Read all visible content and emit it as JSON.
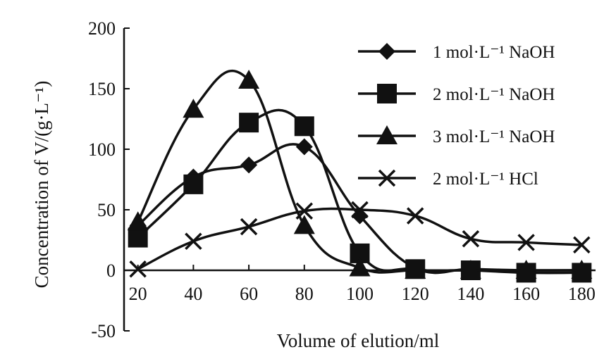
{
  "chart_data": {
    "type": "line",
    "title": "",
    "xlabel": "Volume of elution/ml",
    "ylabel": "Concentration of V/(g·L⁻¹)",
    "x": [
      20,
      40,
      60,
      80,
      100,
      120,
      140,
      160,
      180
    ],
    "xlim": [
      15,
      185
    ],
    "ylim": [
      -50,
      200
    ],
    "x_ticks": [
      "20",
      "40",
      "60",
      "80",
      "100",
      "120",
      "140",
      "160",
      "180"
    ],
    "y_ticks": [
      "200",
      "150",
      "100",
      "50",
      "0",
      "-50"
    ],
    "grid": false,
    "legend_position": "top-right",
    "series": [
      {
        "name": "1 mol·L⁻¹ NaOH",
        "marker": "diamond",
        "points": [
          [
            20,
            37
          ],
          [
            40,
            77
          ],
          [
            60,
            87
          ],
          [
            80,
            102
          ],
          [
            100,
            45
          ],
          [
            120,
            2
          ],
          [
            140,
            1
          ],
          [
            160,
            0
          ],
          [
            180,
            0
          ]
        ]
      },
      {
        "name": "2 mol·L⁻¹ NaOH",
        "marker": "square",
        "points": [
          [
            20,
            27
          ],
          [
            40,
            71
          ],
          [
            60,
            122
          ],
          [
            80,
            119
          ],
          [
            100,
            14
          ],
          [
            120,
            1
          ],
          [
            140,
            0
          ],
          [
            160,
            -2
          ],
          [
            180,
            -2
          ]
        ]
      },
      {
        "name": "3 mol·L⁻¹ NaOH",
        "marker": "triangle",
        "points": [
          [
            20,
            40
          ],
          [
            40,
            133
          ],
          [
            60,
            157
          ],
          [
            80,
            37
          ],
          [
            100,
            2
          ],
          [
            120,
            0
          ],
          [
            140,
            0
          ],
          [
            160,
            0
          ],
          [
            180,
            0
          ]
        ]
      },
      {
        "name": "2 mol·L⁻¹ HCl",
        "marker": "x",
        "points": [
          [
            20,
            1
          ],
          [
            40,
            24
          ],
          [
            60,
            36
          ],
          [
            80,
            49
          ],
          [
            100,
            50
          ],
          [
            120,
            45
          ],
          [
            140,
            26
          ],
          [
            160,
            23
          ],
          [
            180,
            21
          ]
        ]
      }
    ]
  }
}
